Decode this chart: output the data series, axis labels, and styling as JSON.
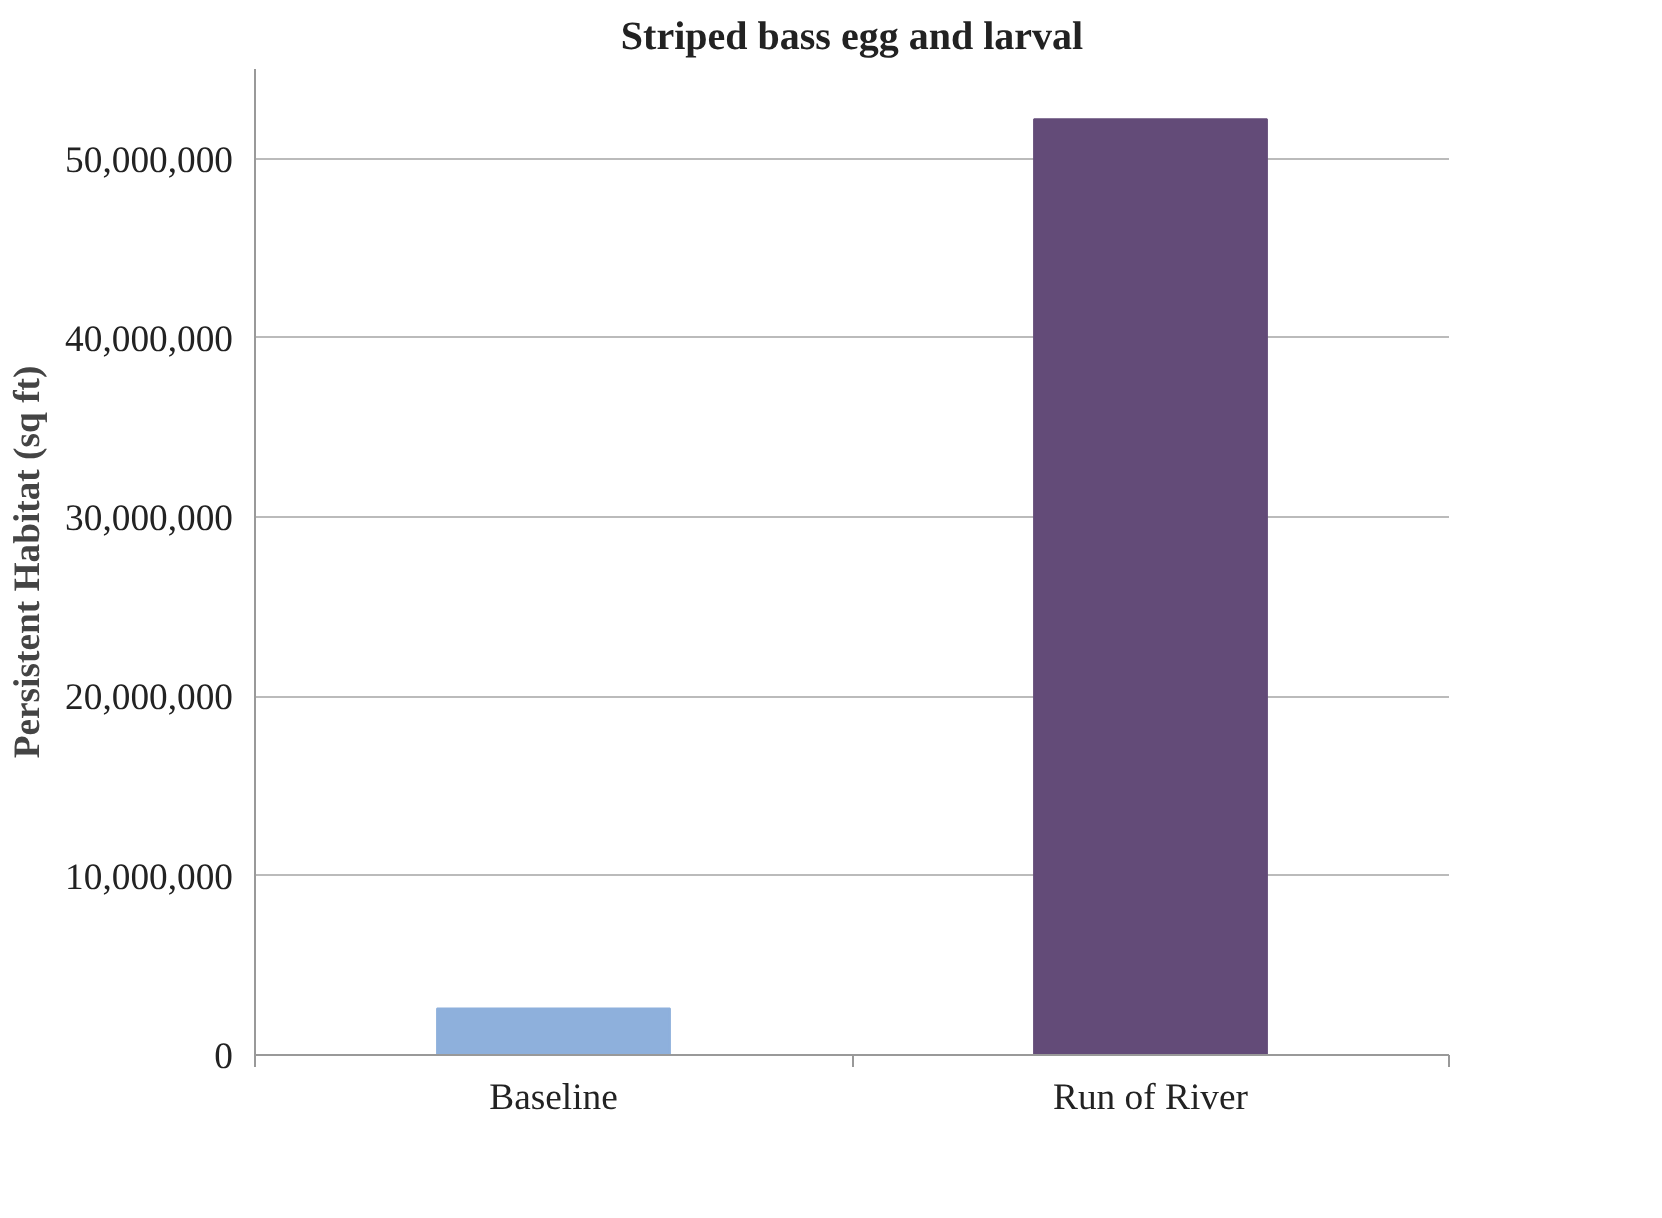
{
  "chart_data": {
    "type": "bar",
    "title": "Striped bass egg and larval",
    "ylabel": "Persistent Habitat (sq ft)",
    "categories": [
      "Baseline",
      "Run of River"
    ],
    "values": [
      2600000,
      52200000
    ],
    "colors": [
      "#8eb0dc",
      "#634b78"
    ],
    "ylim": [
      0,
      55000000
    ],
    "yticks": [
      {
        "value": 0,
        "label": "0"
      },
      {
        "value": 10000000,
        "label": "10,000,000"
      },
      {
        "value": 20000000,
        "label": "20,000,000"
      },
      {
        "value": 30000000,
        "label": "30,000,000"
      },
      {
        "value": 40000000,
        "label": "40,000,000"
      },
      {
        "value": 50000000,
        "label": "50,000,000"
      }
    ],
    "grid": "y"
  }
}
